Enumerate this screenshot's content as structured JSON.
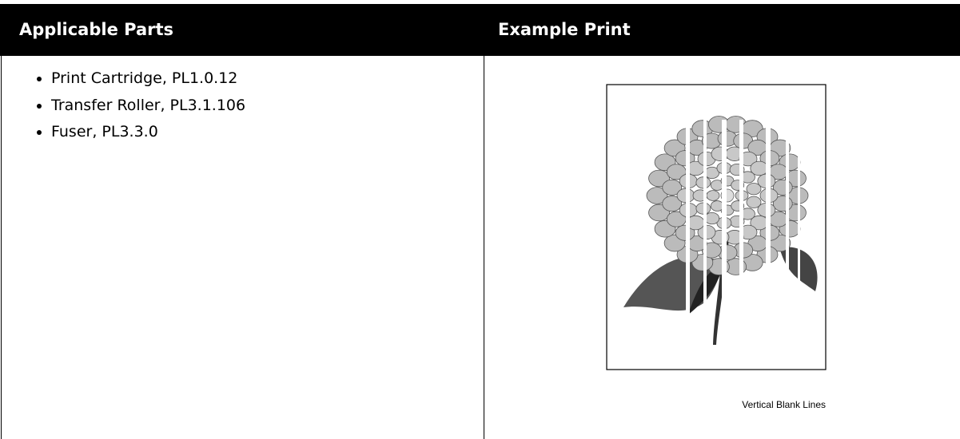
{
  "table": {
    "headers": [
      "Applicable Parts",
      "Example Print"
    ],
    "applicable_parts": [
      "Print Cartridge, PL1.0.12",
      "Transfer Roller, PL3.1.106",
      "Fuser, PL3.3.0"
    ],
    "example_print": {
      "caption": "Vertical Blank Lines"
    }
  }
}
